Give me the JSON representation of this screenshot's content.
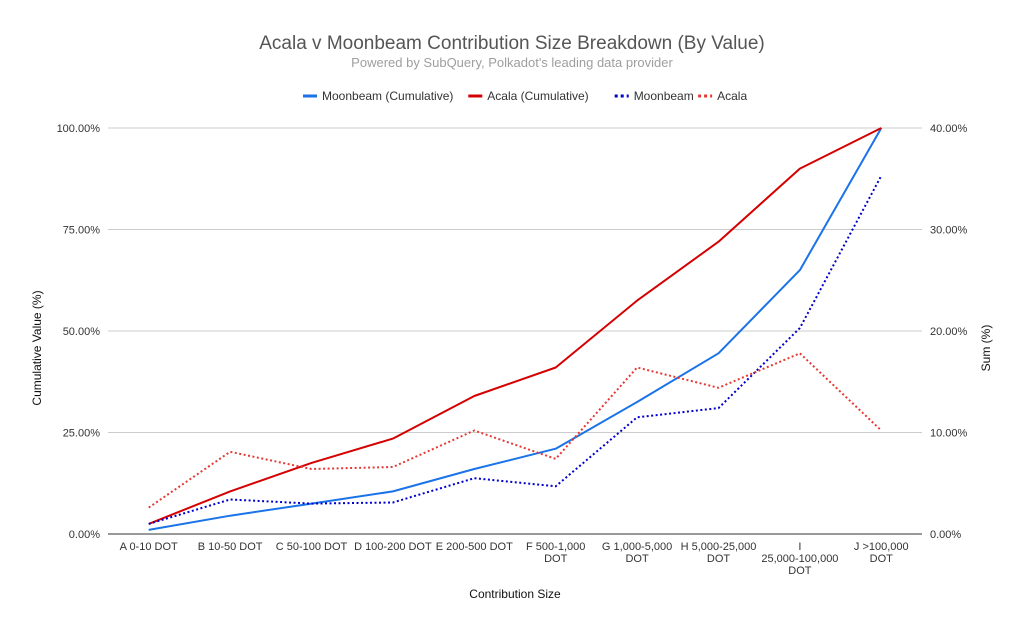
{
  "chart_data": {
    "type": "line",
    "title": "Acala v Moonbeam Contribution Size Breakdown (By Value)",
    "subtitle": "Powered by SubQuery, Polkadot's leading data provider",
    "xlabel": "Contribution Size",
    "ylabel_left": "Cumulative Value (%)",
    "ylabel_right": "Sum (%)",
    "ylim_left": [
      0,
      100
    ],
    "ylim_right": [
      0,
      40
    ],
    "yticks_left": [
      "0.00%",
      "25.00%",
      "50.00%",
      "75.00%",
      "100.00%"
    ],
    "yticks_right": [
      "0.00%",
      "10.00%",
      "20.00%",
      "30.00%",
      "40.00%"
    ],
    "grid": true,
    "legend_position": "top",
    "categories": [
      [
        "A 0-10 DOT"
      ],
      [
        "B 10-50 DOT"
      ],
      [
        "C 50-100 DOT"
      ],
      [
        "D 100-200 DOT"
      ],
      [
        "E 200-500 DOT"
      ],
      [
        "F 500-1,000",
        "DOT"
      ],
      [
        "G 1,000-5,000",
        "DOT"
      ],
      [
        "H 5,000-25,000",
        "DOT"
      ],
      [
        "I",
        "25,000-100,000",
        "DOT"
      ],
      [
        "J >100,000",
        "DOT"
      ]
    ],
    "series": [
      {
        "name": "Moonbeam (Cumulative)",
        "axis": "left",
        "style": "solid",
        "color": "#1a73e8",
        "values": [
          1.0,
          4.5,
          7.5,
          10.5,
          16.0,
          21.0,
          32.5,
          44.5,
          65.0,
          100.0
        ]
      },
      {
        "name": "Acala (Cumulative)",
        "axis": "left",
        "style": "solid",
        "color": "#d50000",
        "values": [
          2.5,
          10.5,
          17.5,
          23.5,
          34.0,
          41.0,
          57.5,
          72.0,
          90.0,
          100.0
        ]
      },
      {
        "name": "Moonbeam",
        "axis": "right",
        "style": "dotted",
        "color": "#0000cc",
        "values": [
          1.0,
          3.4,
          3.0,
          3.1,
          5.5,
          4.7,
          11.5,
          12.4,
          20.3,
          35.3
        ]
      },
      {
        "name": "Acala",
        "axis": "right",
        "style": "dotted",
        "color": "#e53935",
        "values": [
          2.6,
          8.1,
          6.4,
          6.6,
          10.2,
          7.4,
          16.4,
          14.4,
          17.8,
          10.2
        ]
      }
    ]
  }
}
